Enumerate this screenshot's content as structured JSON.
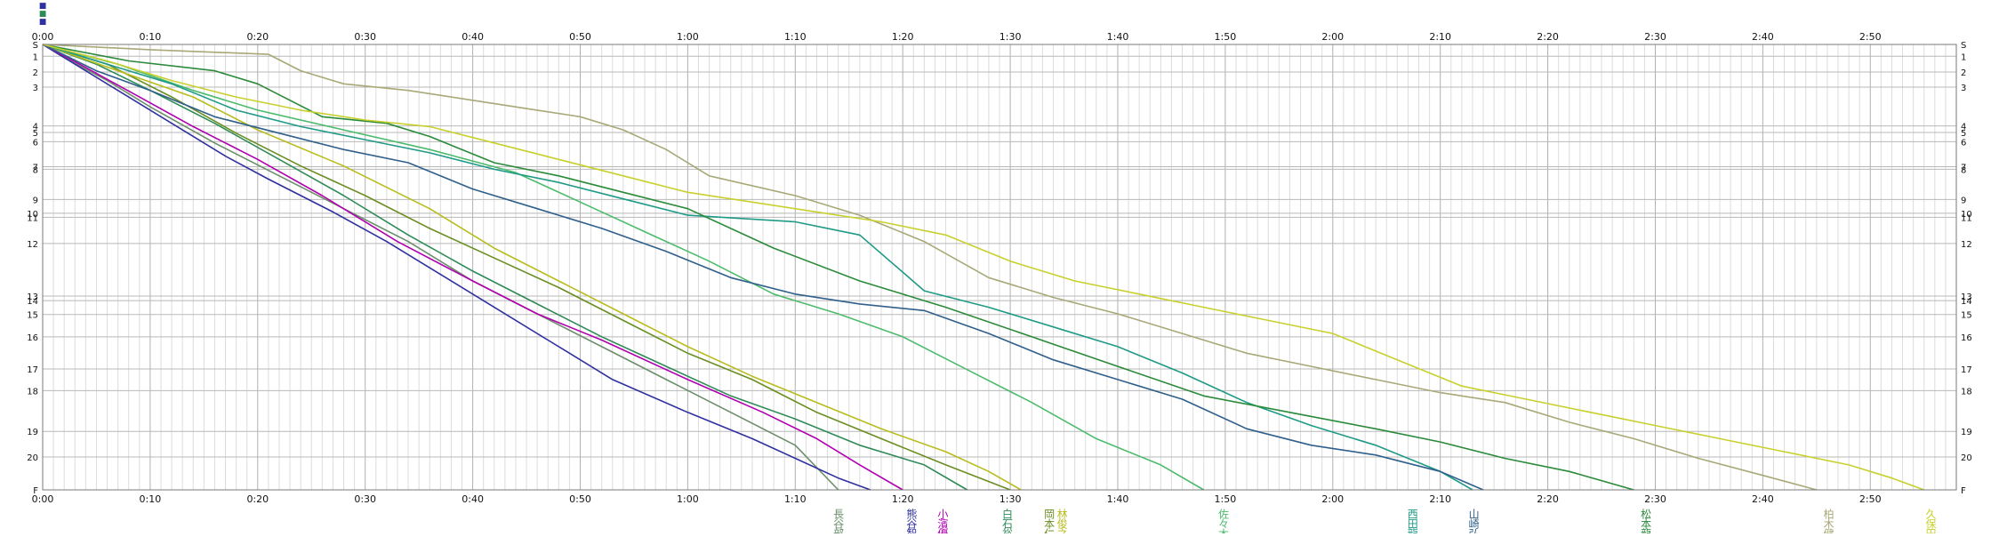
{
  "chart_data": {
    "type": "line",
    "title": "",
    "xlabel": "",
    "ylabel": "",
    "x_unit": "elapsed time (h:mm)",
    "x_ticks": [
      "0:00",
      "0:10",
      "0:20",
      "0:30",
      "0:40",
      "0:50",
      "1:00",
      "1:10",
      "1:20",
      "1:30",
      "1:40",
      "1:50",
      "2:00",
      "2:10",
      "2:20",
      "2:30",
      "2:40",
      "2:50"
    ],
    "x_range_minutes": [
      0,
      178
    ],
    "checkpoints": [
      "S",
      "1",
      "2",
      "3",
      "4",
      "5",
      "6",
      "7",
      "8",
      "9",
      "10",
      "11",
      "12",
      "13",
      "14",
      "15",
      "16",
      "17",
      "18",
      "19",
      "20",
      "F"
    ],
    "checkpoint_depth": [
      0,
      18,
      42,
      65,
      124,
      134,
      148,
      186,
      190,
      236,
      257,
      263,
      303,
      383,
      390,
      411,
      445,
      494,
      527,
      589,
      628,
      678
    ],
    "checkpoint_depth_max": 678,
    "grid": true,
    "legend": "vertical runner names below the end of each line",
    "header_glyph": "■",
    "series": [
      {
        "name": "長谷部",
        "color": "#6b8e6b",
        "legend_x": 74,
        "points": [
          [
            0,
            0
          ],
          [
            2,
            20
          ],
          [
            6,
            55
          ],
          [
            10,
            95
          ],
          [
            16,
            150
          ],
          [
            22,
            200
          ],
          [
            28,
            250
          ],
          [
            34,
            300
          ],
          [
            40,
            360
          ],
          [
            46,
            410
          ],
          [
            52,
            460
          ],
          [
            58,
            510
          ],
          [
            64,
            560
          ],
          [
            70,
            610
          ],
          [
            74,
            678
          ]
        ]
      },
      {
        "name": "熊谷智",
        "color": "#3030a0",
        "legend_x": 80.8,
        "points": [
          [
            0,
            0
          ],
          [
            3,
            30
          ],
          [
            7,
            70
          ],
          [
            12,
            120
          ],
          [
            17,
            170
          ],
          [
            21,
            205
          ],
          [
            27,
            255
          ],
          [
            32,
            300
          ],
          [
            36,
            340
          ],
          [
            42,
            400
          ],
          [
            47,
            450
          ],
          [
            53,
            510
          ],
          [
            60,
            560
          ],
          [
            66,
            600
          ],
          [
            70,
            630
          ],
          [
            74,
            660
          ],
          [
            77,
            678
          ]
        ]
      },
      {
        "name": "小濱優",
        "color": "#b000b0",
        "legend_x": 83.7,
        "points": [
          [
            0,
            0
          ],
          [
            4,
            35
          ],
          [
            9,
            80
          ],
          [
            14,
            125
          ],
          [
            20,
            175
          ],
          [
            26,
            230
          ],
          [
            33,
            300
          ],
          [
            40,
            360
          ],
          [
            46,
            410
          ],
          [
            52,
            450
          ],
          [
            60,
            510
          ],
          [
            67,
            560
          ],
          [
            72,
            600
          ],
          [
            76,
            640
          ],
          [
            80,
            678
          ]
        ]
      },
      {
        "name": "白石裕",
        "color": "#2e8b57",
        "legend_x": 89.7,
        "points": [
          [
            0,
            0
          ],
          [
            5,
            30
          ],
          [
            10,
            70
          ],
          [
            16,
            120
          ],
          [
            22,
            175
          ],
          [
            28,
            230
          ],
          [
            34,
            290
          ],
          [
            40,
            345
          ],
          [
            46,
            395
          ],
          [
            52,
            445
          ],
          [
            58,
            490
          ],
          [
            64,
            535
          ],
          [
            70,
            570
          ],
          [
            76,
            610
          ],
          [
            82,
            640
          ],
          [
            86,
            678
          ]
        ]
      },
      {
        "name": "岡本仁",
        "color": "#6b8e23",
        "legend_x": 93.6,
        "points": [
          [
            0,
            0
          ],
          [
            6,
            30
          ],
          [
            12,
            80
          ],
          [
            18,
            135
          ],
          [
            24,
            185
          ],
          [
            30,
            230
          ],
          [
            36,
            280
          ],
          [
            42,
            325
          ],
          [
            48,
            370
          ],
          [
            54,
            420
          ],
          [
            60,
            470
          ],
          [
            66,
            510
          ],
          [
            72,
            560
          ],
          [
            78,
            600
          ],
          [
            84,
            640
          ],
          [
            90,
            678
          ]
        ]
      },
      {
        "name": "林俊之",
        "color": "#b8bc1c",
        "legend_x": 94.8,
        "points": [
          [
            0,
            0
          ],
          [
            7,
            40
          ],
          [
            14,
            80
          ],
          [
            20,
            130
          ],
          [
            28,
            185
          ],
          [
            36,
            250
          ],
          [
            42,
            310
          ],
          [
            48,
            360
          ],
          [
            54,
            410
          ],
          [
            60,
            460
          ],
          [
            66,
            505
          ],
          [
            72,
            545
          ],
          [
            78,
            585
          ],
          [
            84,
            620
          ],
          [
            88,
            650
          ],
          [
            91,
            678
          ]
        ]
      },
      {
        "name": "佐々木",
        "color": "#4cbb6c",
        "legend_x": 109.8,
        "points": [
          [
            0,
            0
          ],
          [
            7,
            30
          ],
          [
            14,
            70
          ],
          [
            20,
            100
          ],
          [
            28,
            130
          ],
          [
            36,
            160
          ],
          [
            44,
            195
          ],
          [
            50,
            240
          ],
          [
            56,
            285
          ],
          [
            62,
            330
          ],
          [
            68,
            380
          ],
          [
            74,
            410
          ],
          [
            80,
            445
          ],
          [
            86,
            495
          ],
          [
            92,
            545
          ],
          [
            98,
            600
          ],
          [
            104,
            640
          ],
          [
            108,
            678
          ]
        ]
      },
      {
        "name": "西田龍",
        "color": "#1e9a86",
        "legend_x": 127.4,
        "points": [
          [
            0,
            0
          ],
          [
            6,
            30
          ],
          [
            12,
            60
          ],
          [
            18,
            100
          ],
          [
            24,
            125
          ],
          [
            30,
            145
          ],
          [
            36,
            165
          ],
          [
            42,
            190
          ],
          [
            48,
            210
          ],
          [
            54,
            235
          ],
          [
            60,
            260
          ],
          [
            70,
            270
          ],
          [
            76,
            290
          ],
          [
            82,
            375
          ],
          [
            88,
            400
          ],
          [
            94,
            430
          ],
          [
            100,
            460
          ],
          [
            106,
            500
          ],
          [
            112,
            545
          ],
          [
            118,
            580
          ],
          [
            124,
            610
          ],
          [
            130,
            650
          ],
          [
            133,
            678
          ]
        ]
      },
      {
        "name": "山崎弘",
        "color": "#2f5f8a",
        "legend_x": 133.1,
        "points": [
          [
            0,
            0
          ],
          [
            5,
            40
          ],
          [
            10,
            70
          ],
          [
            16,
            110
          ],
          [
            22,
            135
          ],
          [
            28,
            160
          ],
          [
            34,
            180
          ],
          [
            40,
            220
          ],
          [
            46,
            250
          ],
          [
            52,
            280
          ],
          [
            58,
            315
          ],
          [
            64,
            355
          ],
          [
            70,
            380
          ],
          [
            76,
            395
          ],
          [
            82,
            405
          ],
          [
            88,
            440
          ],
          [
            94,
            480
          ],
          [
            100,
            510
          ],
          [
            106,
            540
          ],
          [
            112,
            585
          ],
          [
            118,
            610
          ],
          [
            124,
            625
          ],
          [
            130,
            650
          ],
          [
            134,
            678
          ]
        ]
      },
      {
        "name": "松本龍",
        "color": "#2a8a3a",
        "legend_x": 149.1,
        "points": [
          [
            0,
            0
          ],
          [
            8,
            25
          ],
          [
            16,
            40
          ],
          [
            20,
            60
          ],
          [
            26,
            110
          ],
          [
            32,
            120
          ],
          [
            36,
            140
          ],
          [
            42,
            180
          ],
          [
            48,
            200
          ],
          [
            54,
            225
          ],
          [
            60,
            250
          ],
          [
            68,
            310
          ],
          [
            76,
            360
          ],
          [
            84,
            400
          ],
          [
            92,
            445
          ],
          [
            100,
            490
          ],
          [
            108,
            535
          ],
          [
            116,
            560
          ],
          [
            124,
            585
          ],
          [
            130,
            605
          ],
          [
            136,
            630
          ],
          [
            142,
            650
          ],
          [
            148,
            678
          ]
        ]
      },
      {
        "name": "柏木健",
        "color": "#a8a878",
        "legend_x": 166.1,
        "points": [
          [
            0,
            0
          ],
          [
            10,
            8
          ],
          [
            21,
            15
          ],
          [
            24,
            40
          ],
          [
            28,
            60
          ],
          [
            34,
            70
          ],
          [
            40,
            85
          ],
          [
            46,
            100
          ],
          [
            50,
            110
          ],
          [
            54,
            130
          ],
          [
            58,
            160
          ],
          [
            62,
            200
          ],
          [
            70,
            230
          ],
          [
            76,
            260
          ],
          [
            82,
            300
          ],
          [
            88,
            355
          ],
          [
            94,
            385
          ],
          [
            100,
            410
          ],
          [
            106,
            440
          ],
          [
            112,
            470
          ],
          [
            118,
            490
          ],
          [
            124,
            510
          ],
          [
            130,
            530
          ],
          [
            136,
            545
          ],
          [
            142,
            575
          ],
          [
            148,
            600
          ],
          [
            154,
            630
          ],
          [
            160,
            656
          ],
          [
            165,
            678
          ]
        ]
      },
      {
        "name": "久保田",
        "color": "#c8d02c",
        "legend_x": 175.6,
        "points": [
          [
            0,
            0
          ],
          [
            6,
            25
          ],
          [
            12,
            55
          ],
          [
            18,
            80
          ],
          [
            24,
            100
          ],
          [
            30,
            115
          ],
          [
            36,
            125
          ],
          [
            42,
            150
          ],
          [
            48,
            175
          ],
          [
            54,
            200
          ],
          [
            60,
            225
          ],
          [
            66,
            240
          ],
          [
            72,
            255
          ],
          [
            78,
            270
          ],
          [
            84,
            290
          ],
          [
            90,
            330
          ],
          [
            96,
            360
          ],
          [
            102,
            380
          ],
          [
            108,
            400
          ],
          [
            114,
            420
          ],
          [
            120,
            440
          ],
          [
            126,
            480
          ],
          [
            132,
            520
          ],
          [
            138,
            540
          ],
          [
            144,
            560
          ],
          [
            150,
            580
          ],
          [
            156,
            600
          ],
          [
            162,
            620
          ],
          [
            168,
            640
          ],
          [
            172,
            660
          ],
          [
            175,
            678
          ]
        ]
      }
    ]
  }
}
